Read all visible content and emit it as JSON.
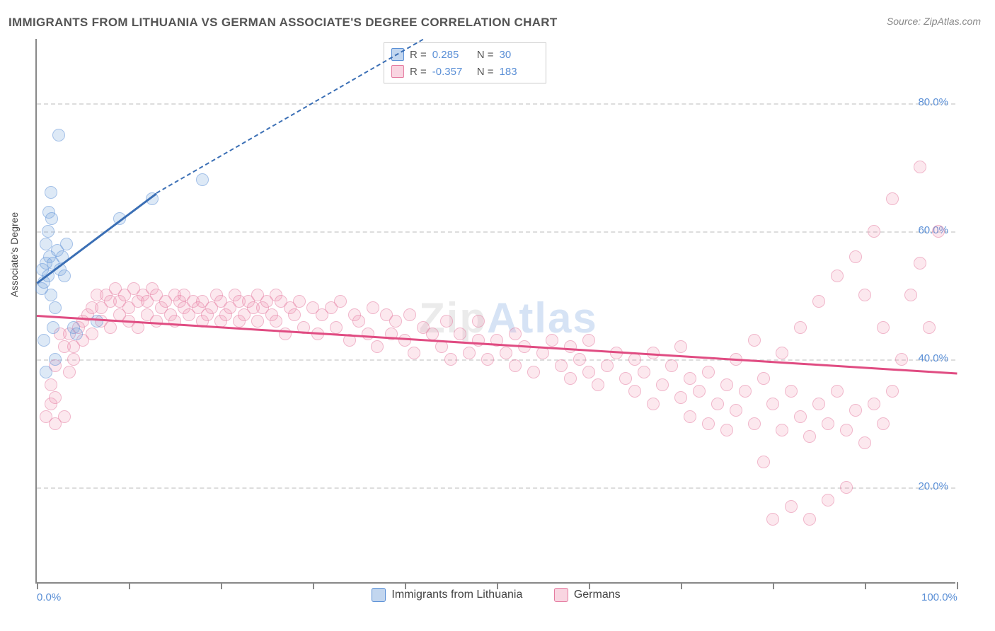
{
  "title": "IMMIGRANTS FROM LITHUANIA VS GERMAN ASSOCIATE'S DEGREE CORRELATION CHART",
  "source": "Source: ZipAtlas.com",
  "ylabel": "Associate's Degree",
  "watermark": "ZipAtlas",
  "chart": {
    "type": "scatter",
    "xlim": [
      0,
      100
    ],
    "ylim": [
      5,
      90
    ],
    "x_ticks": [
      0,
      10,
      20,
      30,
      40,
      50,
      60,
      70,
      80,
      90,
      100
    ],
    "x_tick_labels": {
      "0": "0.0%",
      "100": "100.0%"
    },
    "y_ticks": [
      20,
      40,
      60,
      80
    ],
    "y_tick_labels": {
      "20": "20.0%",
      "40": "40.0%",
      "60": "60.0%",
      "80": "80.0%"
    },
    "grid_color": "#dddddd",
    "axis_color": "#888888",
    "background_color": "#ffffff",
    "marker_radius": 9,
    "series": {
      "lithuania": {
        "label": "Immigrants from Lithuania",
        "color_fill": "rgba(120,165,220,0.45)",
        "color_stroke": "#5a8fd6",
        "R": "0.285",
        "N": "30",
        "trend": {
          "x1": 0,
          "y1": 52,
          "x2_solid": 13,
          "y2_solid": 66,
          "x2": 42,
          "y2": 90,
          "color": "#3b6fb5",
          "width": 2.5
        },
        "points": [
          [
            0.5,
            51
          ],
          [
            0.6,
            54
          ],
          [
            0.8,
            52
          ],
          [
            1.0,
            55
          ],
          [
            1.0,
            58
          ],
          [
            0.8,
            43
          ],
          [
            1.2,
            53
          ],
          [
            1.2,
            60
          ],
          [
            1.3,
            63
          ],
          [
            1.4,
            56
          ],
          [
            1.5,
            50
          ],
          [
            1.5,
            66
          ],
          [
            1.6,
            62
          ],
          [
            1.8,
            55
          ],
          [
            1.8,
            45
          ],
          [
            2.0,
            40
          ],
          [
            2.0,
            48
          ],
          [
            2.2,
            57
          ],
          [
            2.4,
            75
          ],
          [
            2.5,
            54
          ],
          [
            2.8,
            56
          ],
          [
            3.0,
            53
          ],
          [
            3.2,
            58
          ],
          [
            4.0,
            45
          ],
          [
            4.3,
            44
          ],
          [
            6.5,
            46
          ],
          [
            9.0,
            62
          ],
          [
            12.5,
            65
          ],
          [
            18.0,
            68
          ],
          [
            1.0,
            38
          ]
        ]
      },
      "germans": {
        "label": "Germans",
        "color_fill": "rgba(240,150,180,0.40)",
        "color_stroke": "#e57ba0",
        "R": "-0.357",
        "N": "183",
        "trend": {
          "x1": 0,
          "y1": 47,
          "x2": 100,
          "y2": 38,
          "color": "#e04c82",
          "width": 2.5
        },
        "points": [
          [
            1,
            31
          ],
          [
            1.5,
            33
          ],
          [
            1.5,
            36
          ],
          [
            2,
            34
          ],
          [
            2,
            30
          ],
          [
            2,
            39
          ],
          [
            2.5,
            44
          ],
          [
            3,
            31
          ],
          [
            3,
            42
          ],
          [
            3.5,
            44
          ],
          [
            3.5,
            38
          ],
          [
            4,
            40
          ],
          [
            4,
            42
          ],
          [
            4.5,
            45
          ],
          [
            5,
            43
          ],
          [
            5,
            46
          ],
          [
            5.5,
            47
          ],
          [
            6,
            44
          ],
          [
            6,
            48
          ],
          [
            6.5,
            50
          ],
          [
            7,
            46
          ],
          [
            7,
            48
          ],
          [
            7.5,
            50
          ],
          [
            8,
            45
          ],
          [
            8,
            49
          ],
          [
            8.5,
            51
          ],
          [
            9,
            47
          ],
          [
            9,
            49
          ],
          [
            9.5,
            50
          ],
          [
            10,
            46
          ],
          [
            10,
            48
          ],
          [
            10.5,
            51
          ],
          [
            11,
            45
          ],
          [
            11,
            49
          ],
          [
            11.5,
            50
          ],
          [
            12,
            47
          ],
          [
            12,
            49
          ],
          [
            12.5,
            51
          ],
          [
            13,
            46
          ],
          [
            13,
            50
          ],
          [
            13.5,
            48
          ],
          [
            14,
            49
          ],
          [
            14.5,
            47
          ],
          [
            15,
            50
          ],
          [
            15,
            46
          ],
          [
            15.5,
            49
          ],
          [
            16,
            48
          ],
          [
            16,
            50
          ],
          [
            16.5,
            47
          ],
          [
            17,
            49
          ],
          [
            17.5,
            48
          ],
          [
            18,
            46
          ],
          [
            18,
            49
          ],
          [
            18.5,
            47
          ],
          [
            19,
            48
          ],
          [
            19.5,
            50
          ],
          [
            20,
            46
          ],
          [
            20,
            49
          ],
          [
            20.5,
            47
          ],
          [
            21,
            48
          ],
          [
            21.5,
            50
          ],
          [
            22,
            46
          ],
          [
            22,
            49
          ],
          [
            22.5,
            47
          ],
          [
            23,
            49
          ],
          [
            23.5,
            48
          ],
          [
            24,
            50
          ],
          [
            24,
            46
          ],
          [
            24.5,
            48
          ],
          [
            25,
            49
          ],
          [
            25.5,
            47
          ],
          [
            26,
            50
          ],
          [
            26,
            46
          ],
          [
            26.5,
            49
          ],
          [
            27,
            44
          ],
          [
            27.5,
            48
          ],
          [
            28,
            47
          ],
          [
            28.5,
            49
          ],
          [
            29,
            45
          ],
          [
            30,
            48
          ],
          [
            30.5,
            44
          ],
          [
            31,
            47
          ],
          [
            32,
            48
          ],
          [
            32.5,
            45
          ],
          [
            33,
            49
          ],
          [
            34,
            43
          ],
          [
            34.5,
            47
          ],
          [
            35,
            46
          ],
          [
            36,
            44
          ],
          [
            36.5,
            48
          ],
          [
            37,
            42
          ],
          [
            38,
            47
          ],
          [
            38.5,
            44
          ],
          [
            39,
            46
          ],
          [
            40,
            43
          ],
          [
            40.5,
            47
          ],
          [
            41,
            41
          ],
          [
            42,
            45
          ],
          [
            43,
            44
          ],
          [
            44,
            42
          ],
          [
            44.5,
            46
          ],
          [
            45,
            40
          ],
          [
            46,
            44
          ],
          [
            47,
            41
          ],
          [
            48,
            43
          ],
          [
            48,
            46
          ],
          [
            49,
            40
          ],
          [
            50,
            43
          ],
          [
            51,
            41
          ],
          [
            52,
            39
          ],
          [
            52,
            44
          ],
          [
            53,
            42
          ],
          [
            54,
            38
          ],
          [
            55,
            41
          ],
          [
            56,
            43
          ],
          [
            57,
            39
          ],
          [
            58,
            37
          ],
          [
            58,
            42
          ],
          [
            59,
            40
          ],
          [
            60,
            38
          ],
          [
            60,
            43
          ],
          [
            61,
            36
          ],
          [
            62,
            39
          ],
          [
            63,
            41
          ],
          [
            64,
            37
          ],
          [
            65,
            35
          ],
          [
            65,
            40
          ],
          [
            66,
            38
          ],
          [
            67,
            41
          ],
          [
            67,
            33
          ],
          [
            68,
            36
          ],
          [
            69,
            39
          ],
          [
            70,
            34
          ],
          [
            70,
            42
          ],
          [
            71,
            37
          ],
          [
            71,
            31
          ],
          [
            72,
            35
          ],
          [
            73,
            38
          ],
          [
            73,
            30
          ],
          [
            74,
            33
          ],
          [
            75,
            36
          ],
          [
            75,
            29
          ],
          [
            76,
            40
          ],
          [
            76,
            32
          ],
          [
            77,
            35
          ],
          [
            78,
            30
          ],
          [
            78,
            43
          ],
          [
            79,
            24
          ],
          [
            79,
            37
          ],
          [
            80,
            33
          ],
          [
            80,
            15
          ],
          [
            81,
            29
          ],
          [
            81,
            41
          ],
          [
            82,
            35
          ],
          [
            82,
            17
          ],
          [
            83,
            31
          ],
          [
            83,
            45
          ],
          [
            84,
            28
          ],
          [
            84,
            15
          ],
          [
            85,
            33
          ],
          [
            85,
            49
          ],
          [
            86,
            30
          ],
          [
            86,
            18
          ],
          [
            87,
            35
          ],
          [
            87,
            53
          ],
          [
            88,
            29
          ],
          [
            88,
            20
          ],
          [
            89,
            32
          ],
          [
            89,
            56
          ],
          [
            90,
            27
          ],
          [
            90,
            50
          ],
          [
            91,
            33
          ],
          [
            91,
            60
          ],
          [
            92,
            30
          ],
          [
            92,
            45
          ],
          [
            93,
            35
          ],
          [
            93,
            65
          ],
          [
            94,
            40
          ],
          [
            95,
            50
          ],
          [
            96,
            55
          ],
          [
            96,
            70
          ],
          [
            97,
            45
          ],
          [
            98,
            60
          ]
        ]
      }
    }
  },
  "legend": {
    "lithuania": "Immigrants from Lithuania",
    "germans": "Germans"
  }
}
